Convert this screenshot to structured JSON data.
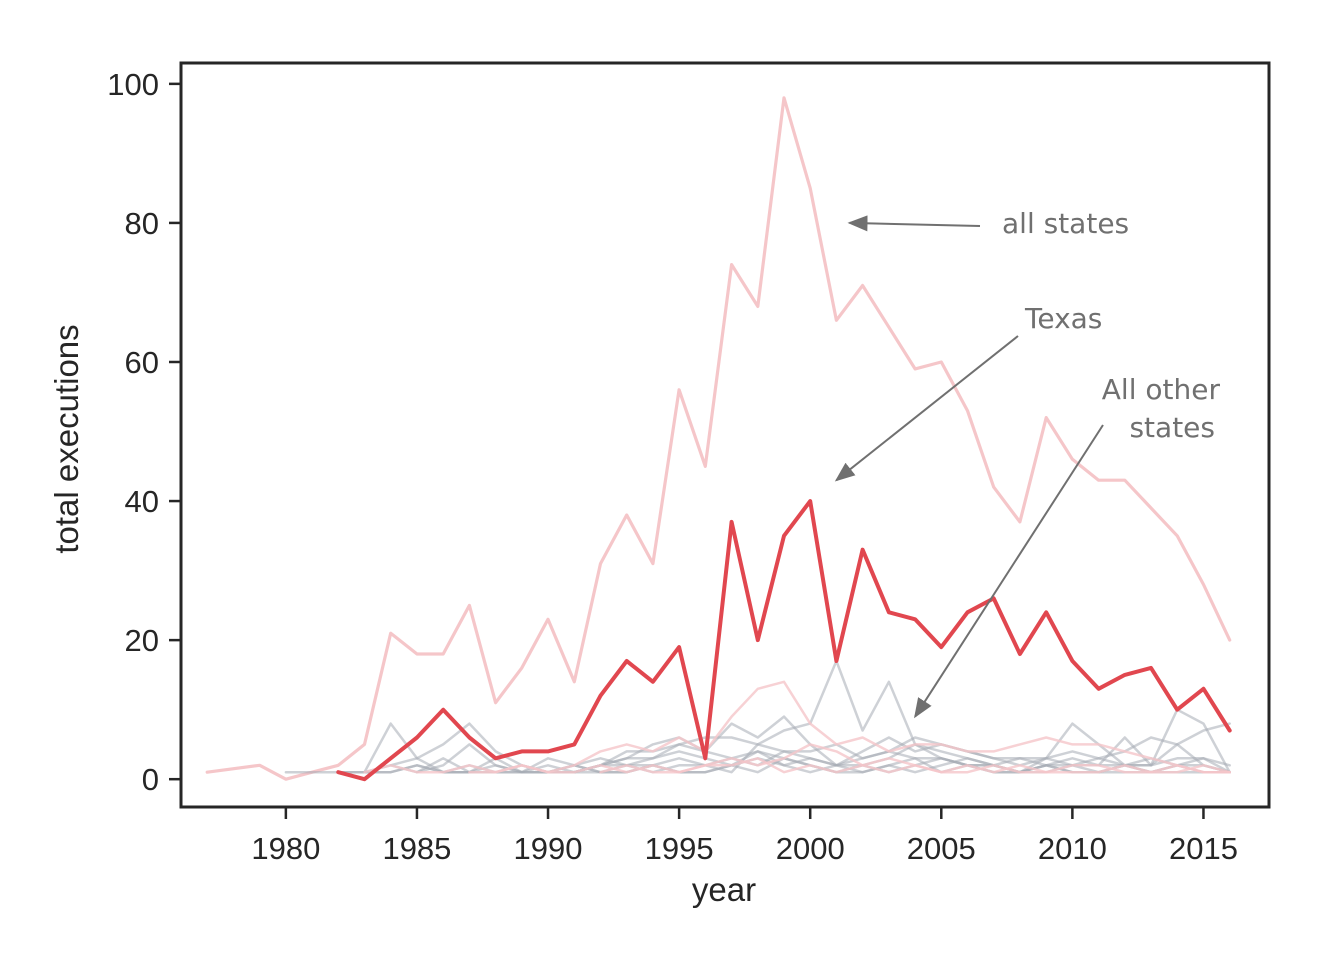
{
  "chart_data": {
    "type": "line",
    "xlabel": "year",
    "ylabel": "total executions",
    "xlim": [
      1976,
      2017.5
    ],
    "ylim": [
      -4,
      103
    ],
    "xticks": [
      1980,
      1985,
      1990,
      1995,
      2000,
      2005,
      2010,
      2015
    ],
    "yticks": [
      0,
      20,
      40,
      60,
      80,
      100
    ],
    "grid": false,
    "colors": {
      "all_states": "#f5c6c9",
      "texas": "#e1474f",
      "other_states": "#a6abb5"
    },
    "annotations": [
      {
        "id": "all-states",
        "text_lines": [
          "all states"
        ],
        "arrow_target": {
          "x": 2001.5,
          "y": 80
        }
      },
      {
        "id": "texas",
        "text_lines": [
          "Texas"
        ],
        "arrow_target": {
          "x": 2001,
          "y": 43
        }
      },
      {
        "id": "all-other-states",
        "text_lines": [
          "All other",
          "states"
        ],
        "arrow_target": {
          "x": 2004,
          "y": 9
        }
      }
    ],
    "series": [
      {
        "id": "all-states",
        "x": [
          1977,
          1979,
          1980,
          1981,
          1982,
          1983,
          1984,
          1985,
          1986,
          1987,
          1988,
          1989,
          1990,
          1991,
          1992,
          1993,
          1994,
          1995,
          1996,
          1997,
          1998,
          1999,
          2000,
          2001,
          2002,
          2003,
          2004,
          2005,
          2006,
          2007,
          2008,
          2009,
          2010,
          2011,
          2012,
          2013,
          2014,
          2015,
          2016
        ],
        "values": [
          1,
          2,
          0,
          1,
          2,
          5,
          21,
          18,
          18,
          25,
          11,
          16,
          23,
          14,
          31,
          38,
          31,
          56,
          45,
          74,
          68,
          98,
          85,
          66,
          71,
          65,
          59,
          60,
          53,
          42,
          37,
          52,
          46,
          43,
          43,
          39,
          35,
          28,
          20
        ]
      },
      {
        "id": "texas",
        "x": [
          1982,
          1983,
          1984,
          1985,
          1986,
          1987,
          1988,
          1989,
          1990,
          1991,
          1992,
          1993,
          1994,
          1995,
          1996,
          1997,
          1998,
          1999,
          2000,
          2001,
          2002,
          2003,
          2004,
          2005,
          2006,
          2007,
          2008,
          2009,
          2010,
          2011,
          2012,
          2013,
          2014,
          2015,
          2016
        ],
        "values": [
          1,
          0,
          3,
          6,
          10,
          6,
          3,
          4,
          4,
          5,
          12,
          17,
          14,
          19,
          3,
          37,
          20,
          35,
          40,
          17,
          33,
          24,
          23,
          19,
          24,
          26,
          18,
          24,
          17,
          13,
          15,
          16,
          10,
          13,
          7
        ]
      },
      {
        "id": "other-a",
        "x": [
          1983,
          1984,
          1985,
          1986,
          1987,
          1988,
          1989,
          1990,
          1991,
          1992,
          1993,
          1994,
          1995,
          1996,
          1997,
          1998,
          1999,
          2000,
          2001,
          2002,
          2003,
          2004,
          2005,
          2006,
          2007,
          2008,
          2009,
          2010,
          2011,
          2012,
          2013,
          2014,
          2015,
          2016
        ],
        "values": [
          1,
          8,
          3,
          1,
          2,
          1,
          1,
          1,
          1,
          2,
          4,
          4,
          5,
          6,
          6,
          5,
          4,
          4,
          5,
          3,
          4,
          6,
          5,
          4,
          3,
          3,
          3,
          2,
          2,
          2,
          2,
          3,
          3,
          1
        ]
      },
      {
        "id": "other-b",
        "x": [
          1982,
          1983,
          1984,
          1985,
          1986,
          1987,
          1988,
          1989,
          1990,
          1991,
          1992,
          1993,
          1994,
          1995,
          1996,
          1997,
          1998,
          1999,
          2000,
          2001,
          2002,
          2003,
          2004,
          2005,
          2006,
          2007,
          2008,
          2009,
          2010,
          2011,
          2012,
          2013,
          2014,
          2015,
          2016
        ],
        "values": [
          1,
          1,
          2,
          3,
          5,
          8,
          4,
          2,
          1,
          1,
          2,
          3,
          5,
          6,
          4,
          8,
          6,
          9,
          5,
          2,
          4,
          6,
          4,
          5,
          4,
          3,
          2,
          3,
          8,
          5,
          2,
          2,
          10,
          8,
          1
        ]
      },
      {
        "id": "other-c",
        "x": [
          1985,
          1986,
          1987,
          1988,
          1989,
          1990,
          1991,
          1992,
          1993,
          1994,
          1995,
          1996,
          1997,
          1998,
          1999,
          2000,
          2001,
          2002,
          2003,
          2004,
          2005,
          2006,
          2007,
          2008,
          2009,
          2010,
          2011,
          2012,
          2013,
          2014,
          2015,
          2016
        ],
        "values": [
          1,
          2,
          5,
          2,
          1,
          3,
          2,
          1,
          1,
          2,
          3,
          2,
          1,
          5,
          7,
          8,
          17,
          7,
          14,
          5,
          3,
          2,
          1,
          1,
          2,
          3,
          2,
          6,
          2,
          5,
          2,
          1
        ]
      },
      {
        "id": "other-d",
        "x": [
          1984,
          1985,
          1986,
          1987,
          1988,
          1989,
          1990,
          1991,
          1992,
          1993,
          1994,
          1995,
          1996,
          1997,
          1998,
          1999,
          2000,
          2001,
          2002,
          2003,
          2004,
          2005,
          2006,
          2007,
          2008,
          2009,
          2010,
          2011,
          2012,
          2013,
          2014,
          2015,
          2016
        ],
        "values": [
          2,
          1,
          3,
          1,
          1,
          2,
          1,
          2,
          3,
          2,
          3,
          4,
          3,
          2,
          4,
          3,
          2,
          1,
          2,
          3,
          5,
          4,
          3,
          2,
          3,
          2,
          2,
          3,
          2,
          3,
          2,
          3,
          2
        ]
      },
      {
        "id": "other-e",
        "x": [
          1980,
          1981,
          1982,
          1983,
          1984,
          1985,
          1986,
          1987,
          1988,
          1989,
          1990,
          1991,
          1992,
          1993,
          1994,
          1995,
          1996,
          1997,
          1998,
          1999,
          2000,
          2001,
          2002,
          2003,
          2004,
          2005,
          2006,
          2007,
          2008,
          2009,
          2010,
          2011,
          2012,
          2013,
          2014,
          2015,
          2016
        ],
        "values": [
          1,
          1,
          1,
          1,
          1,
          2,
          1,
          1,
          2,
          1,
          1,
          2,
          1,
          1,
          2,
          1,
          1,
          2,
          3,
          2,
          1,
          2,
          1,
          2,
          1,
          2,
          3,
          2,
          1,
          1,
          2,
          1,
          2,
          1,
          2,
          1,
          1
        ]
      },
      {
        "id": "other-f",
        "x": [
          1983,
          1984,
          1985,
          1986,
          1987,
          1988,
          1989,
          1990,
          1991,
          1992,
          1993,
          1994,
          1995,
          1996,
          1997,
          1998,
          1999,
          2000,
          2001,
          2002,
          2003,
          2004,
          2005,
          2006,
          2007,
          2008,
          2009,
          2010,
          2011,
          2012,
          2013,
          2014,
          2015,
          2016
        ],
        "values": [
          1,
          1,
          2,
          1,
          1,
          3,
          1,
          2,
          1,
          2,
          3,
          3,
          5,
          4,
          3,
          2,
          4,
          3,
          2,
          3,
          4,
          3,
          3,
          2,
          2,
          1,
          3,
          4,
          3,
          4,
          6,
          5,
          7,
          8
        ]
      },
      {
        "id": "other-g",
        "x": [
          1986,
          1987,
          1988,
          1989,
          1990,
          1991,
          1992,
          1993,
          1994,
          1995,
          1996,
          1997,
          1998,
          1999,
          2000,
          2001,
          2002,
          2003,
          2004,
          2005,
          2006,
          2007,
          2008,
          2009,
          2010,
          2011,
          2012,
          2013,
          2014,
          2015,
          2016
        ],
        "values": [
          1,
          1,
          1,
          1,
          1,
          1,
          2,
          2,
          1,
          2,
          2,
          3,
          4,
          2,
          3,
          2,
          2,
          1,
          2,
          3,
          2,
          2,
          1,
          2,
          1,
          1,
          1,
          1,
          2,
          2,
          1
        ]
      },
      {
        "id": "other-h",
        "x": [
          1990,
          1991,
          1992,
          1993,
          1994,
          1995,
          1996,
          1997,
          1998,
          1999,
          2000,
          2001,
          2002,
          2003,
          2004,
          2005,
          2006,
          2007,
          2008,
          2009,
          2010,
          2011,
          2012,
          2013,
          2014,
          2015,
          2016
        ],
        "values": [
          1,
          1,
          1,
          2,
          2,
          1,
          1,
          2,
          1,
          3,
          2,
          1,
          1,
          2,
          3,
          1,
          2,
          1,
          1,
          2,
          1,
          1,
          2,
          1,
          1,
          1,
          1
        ]
      },
      {
        "id": "other-pink-1",
        "x": [
          1983,
          1984,
          1985,
          1986,
          1987,
          1988,
          1989,
          1990,
          1991,
          1992,
          1993,
          1994,
          1995,
          1996,
          1997,
          1998,
          1999,
          2000,
          2001,
          2002,
          2003,
          2004,
          2005,
          2006,
          2007,
          2008,
          2009,
          2010,
          2011,
          2012,
          2013,
          2014,
          2015,
          2016
        ],
        "values": [
          1,
          2,
          1,
          1,
          2,
          1,
          2,
          1,
          2,
          4,
          5,
          4,
          6,
          4,
          9,
          13,
          14,
          8,
          5,
          6,
          4,
          5,
          5,
          4,
          4,
          5,
          6,
          5,
          5,
          4,
          3,
          2,
          1,
          1
        ]
      },
      {
        "id": "other-pink-2",
        "x": [
          1987,
          1988,
          1989,
          1990,
          1991,
          1992,
          1993,
          1994,
          1995,
          1996,
          1997,
          1998,
          1999,
          2000,
          2001,
          2002,
          2003,
          2004,
          2005,
          2006,
          2007,
          2008,
          2009,
          2010,
          2011,
          2012,
          2013,
          2014,
          2015,
          2016
        ],
        "values": [
          1,
          1,
          2,
          1,
          1,
          2,
          1,
          2,
          1,
          2,
          3,
          2,
          3,
          5,
          4,
          2,
          3,
          2,
          1,
          2,
          1,
          2,
          1,
          2,
          2,
          1,
          1,
          2,
          1,
          1
        ]
      },
      {
        "id": "other-pink-3",
        "x": [
          1992,
          1993,
          1994,
          1995,
          1996,
          1997,
          1998,
          1999,
          2000,
          2001,
          2002,
          2003,
          2004,
          2005,
          2006,
          2007,
          2008,
          2009,
          2010,
          2011,
          2012,
          2013,
          2014,
          2015,
          2016
        ],
        "values": [
          1,
          2,
          1,
          1,
          2,
          2,
          3,
          1,
          2,
          1,
          2,
          1,
          2,
          1,
          1,
          2,
          1,
          1,
          1,
          1,
          2,
          1,
          1,
          2,
          1
        ]
      }
    ]
  }
}
